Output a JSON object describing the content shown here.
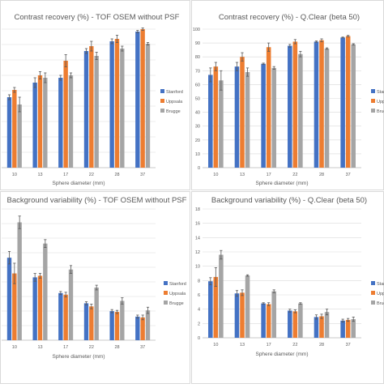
{
  "colors": {
    "Stanford": "#4472c4",
    "Uppsala": "#ed7d31",
    "Brugge": "#a5a5a5"
  },
  "chart_data": [
    {
      "type": "bar",
      "title": "Contrast recovery (%) - TOF OSEM without PSF",
      "xlabel": "Sphere diameter (mm)",
      "ylabel": "",
      "categories": [
        "10",
        "13",
        "17",
        "22",
        "28",
        "37"
      ],
      "ylim": [
        35,
        92
      ],
      "y_ticks": [],
      "series": [
        {
          "name": "Stanford",
          "values": [
            64,
            70,
            72,
            83,
            87,
            91
          ],
          "errors": [
            1,
            2,
            1,
            1,
            1,
            0.5
          ]
        },
        {
          "name": "Uppsala",
          "values": [
            67,
            73,
            79,
            85,
            88,
            92
          ],
          "errors": [
            1,
            1.5,
            2.5,
            2,
            1.5,
            0.5
          ]
        },
        {
          "name": "Brugge",
          "values": [
            61,
            72,
            73,
            81,
            84,
            86
          ],
          "errors": [
            3,
            2,
            1,
            1.5,
            1,
            0.5
          ]
        }
      ],
      "legend": "right"
    },
    {
      "type": "bar",
      "title": "Contrast recovery (%) - Q.Clear (beta 50)",
      "xlabel": "Sphere diameter (mm)",
      "ylabel": "",
      "categories": [
        "10",
        "13",
        "17",
        "22",
        "28",
        "37"
      ],
      "ylim": [
        0,
        100
      ],
      "y_ticks": [
        0,
        10,
        20,
        30,
        40,
        50,
        60,
        70,
        80,
        90,
        100
      ],
      "series": [
        {
          "name": "Stanford",
          "values": [
            67,
            73,
            75,
            88,
            91,
            94
          ],
          "errors": [
            5,
            3,
            0.5,
            1,
            0.5,
            0.3
          ]
        },
        {
          "name": "Uppsala",
          "values": [
            73,
            80,
            87,
            91,
            92,
            95
          ],
          "errors": [
            3,
            3,
            3,
            1.5,
            1,
            0.5
          ]
        },
        {
          "name": "Brugge",
          "values": [
            63,
            69,
            72,
            82,
            86,
            89
          ],
          "errors": [
            7,
            3,
            1,
            2,
            0.5,
            0.5
          ]
        }
      ],
      "legend": "right"
    },
    {
      "type": "bar",
      "title": "Background variability (%) - TOF OSEM without PSF",
      "xlabel": "Sphere diameter (mm)",
      "ylabel": "",
      "categories": [
        "10",
        "13",
        "17",
        "22",
        "28",
        "37"
      ],
      "ylim": [
        0,
        16.7
      ],
      "y_ticks": [],
      "series": [
        {
          "name": "Stanford",
          "values": [
            10.5,
            8.0,
            6.0,
            4.7,
            3.7,
            3.0
          ],
          "errors": [
            0.8,
            0.5,
            0.2,
            0.2,
            0.2,
            0.2
          ]
        },
        {
          "name": "Uppsala",
          "values": [
            8.5,
            8.2,
            5.8,
            4.3,
            3.6,
            2.9
          ],
          "errors": [
            1.3,
            0.3,
            0.3,
            0.3,
            0.2,
            0.3
          ]
        },
        {
          "name": "Brugge",
          "values": [
            15.0,
            12.3,
            9.0,
            6.7,
            5.0,
            3.8
          ],
          "errors": [
            0.8,
            0.5,
            0.5,
            0.3,
            0.4,
            0.4
          ]
        }
      ],
      "legend": "right"
    },
    {
      "type": "bar",
      "title": "Background variability (%) - Q.Clear (beta 50)",
      "xlabel": "Sphere diameter (mm)",
      "ylabel": "",
      "categories": [
        "10",
        "13",
        "17",
        "22",
        "28",
        "37"
      ],
      "ylim": [
        0,
        18
      ],
      "y_ticks": [
        0,
        2,
        4,
        6,
        8,
        10,
        12,
        14,
        16,
        18
      ],
      "series": [
        {
          "name": "Stanford",
          "values": [
            7.9,
            6.2,
            4.8,
            3.8,
            2.9,
            2.4
          ],
          "errors": [
            0.5,
            0.4,
            0.1,
            0.2,
            0.3,
            0.2
          ]
        },
        {
          "name": "Uppsala",
          "values": [
            8.5,
            6.3,
            4.7,
            3.7,
            3.0,
            2.5
          ],
          "errors": [
            1.3,
            0.4,
            0.2,
            0.2,
            0.3,
            0.2
          ]
        },
        {
          "name": "Brugge",
          "values": [
            11.6,
            8.7,
            6.5,
            4.8,
            3.6,
            2.6
          ],
          "errors": [
            0.6,
            0.1,
            0.2,
            0.1,
            0.4,
            0.3
          ]
        }
      ],
      "legend": "right"
    }
  ]
}
